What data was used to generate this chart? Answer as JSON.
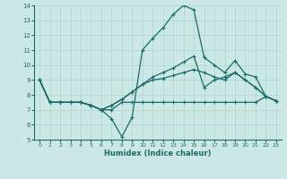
{
  "xlabel": "Humidex (Indice chaleur)",
  "xlim": [
    -0.5,
    23.5
  ],
  "ylim": [
    5,
    14
  ],
  "yticks": [
    5,
    6,
    7,
    8,
    9,
    10,
    11,
    12,
    13,
    14
  ],
  "xticks": [
    0,
    1,
    2,
    3,
    4,
    5,
    6,
    7,
    8,
    9,
    10,
    11,
    12,
    13,
    14,
    15,
    16,
    17,
    18,
    19,
    20,
    21,
    22,
    23
  ],
  "bg_color": "#cce8e4",
  "grid_color": "#b0d4d0",
  "line_color": "#1a6b6b",
  "series": [
    [
      9.0,
      7.5,
      7.5,
      7.5,
      7.5,
      7.3,
      7.0,
      6.4,
      5.2,
      6.5,
      11.0,
      11.8,
      12.5,
      13.4,
      14.0,
      13.7,
      10.5,
      10.0,
      9.5,
      10.3,
      9.4,
      9.2,
      7.9,
      7.6
    ],
    [
      9.0,
      7.5,
      7.5,
      7.5,
      7.5,
      7.3,
      7.0,
      7.0,
      7.5,
      7.5,
      7.5,
      7.5,
      7.5,
      7.5,
      7.5,
      7.5,
      7.5,
      7.5,
      7.5,
      7.5,
      7.5,
      7.5,
      7.9,
      7.6
    ],
    [
      9.0,
      7.5,
      7.5,
      7.5,
      7.5,
      7.3,
      7.0,
      7.3,
      7.7,
      8.2,
      8.7,
      9.2,
      9.5,
      9.8,
      10.2,
      10.6,
      8.5,
      9.0,
      9.2,
      9.5,
      9.0,
      8.5,
      7.9,
      7.6
    ],
    [
      9.0,
      7.5,
      7.5,
      7.5,
      7.5,
      7.3,
      7.0,
      7.3,
      7.7,
      8.2,
      8.7,
      9.0,
      9.1,
      9.3,
      9.5,
      9.7,
      9.5,
      9.2,
      9.0,
      9.5,
      9.0,
      8.5,
      7.9,
      7.6
    ]
  ]
}
